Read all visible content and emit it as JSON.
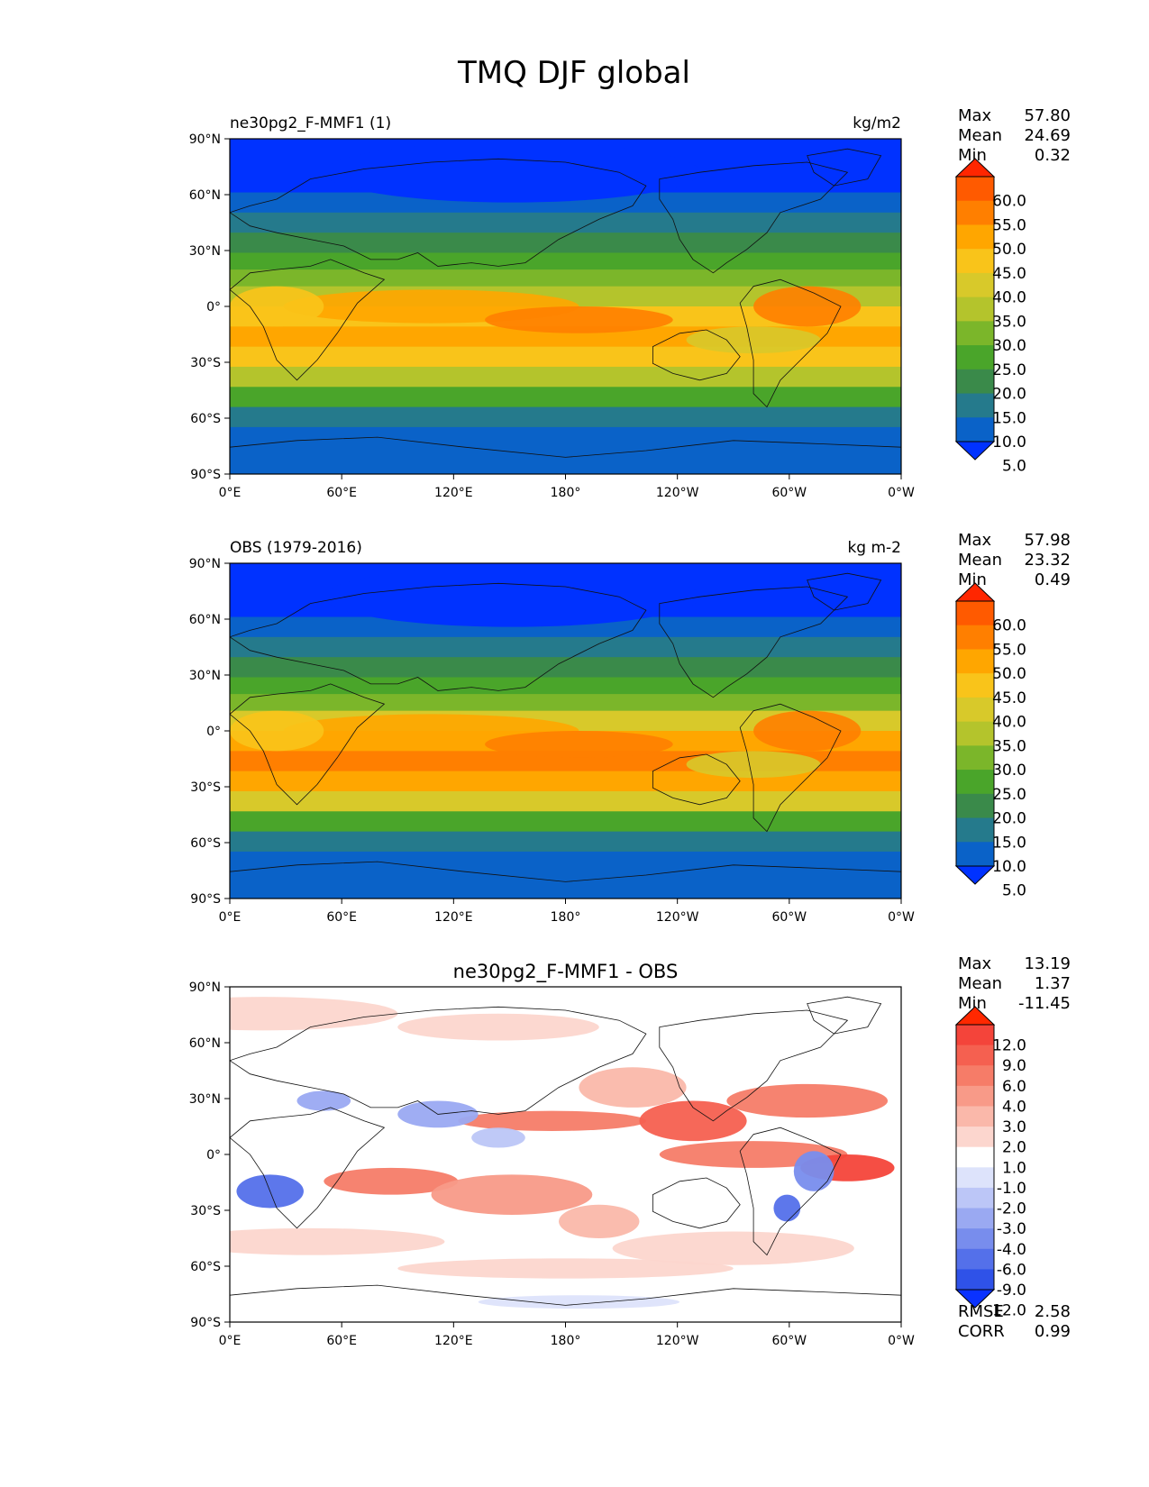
{
  "figure": {
    "title": "TMQ DJF global"
  },
  "axes": {
    "lat_ticks": [
      "90°N",
      "60°N",
      "30°N",
      "0°",
      "30°S",
      "60°S",
      "90°S"
    ],
    "lon_ticks": [
      "0°E",
      "60°E",
      "120°E",
      "180°",
      "120°W",
      "60°W",
      "0°W"
    ]
  },
  "panels": [
    {
      "id": "test",
      "left_title": "ne30pg2_F-MMF1 (1)",
      "center_title": "",
      "units": "kg/m2",
      "stats": [
        {
          "label": "Max",
          "value": "57.80"
        },
        {
          "label": "Mean",
          "value": "24.69"
        },
        {
          "label": "Min",
          "value": "0.32"
        }
      ],
      "colorbar": {
        "labels": [
          "60.0",
          "55.0",
          "50.0",
          "45.0",
          "40.0",
          "35.0",
          "30.0",
          "25.0",
          "20.0",
          "15.0",
          "10.0",
          "5.0"
        ],
        "colors": [
          "#ff2600",
          "#ff5a00",
          "#ff7f00",
          "#ffa600",
          "#f9c41a",
          "#d8c92a",
          "#b4c42c",
          "#7bb62a",
          "#4aa52a",
          "#3a8a4a",
          "#257a8c",
          "#0a62c8",
          "#0032ff"
        ]
      },
      "extra_stats": []
    },
    {
      "id": "ref",
      "left_title": "OBS (1979-2016)",
      "center_title": "",
      "units": "kg m-2",
      "stats": [
        {
          "label": "Max",
          "value": "57.98"
        },
        {
          "label": "Mean",
          "value": "23.32"
        },
        {
          "label": "Min",
          "value": "0.49"
        }
      ],
      "colorbar": {
        "labels": [
          "60.0",
          "55.0",
          "50.0",
          "45.0",
          "40.0",
          "35.0",
          "30.0",
          "25.0",
          "20.0",
          "15.0",
          "10.0",
          "5.0"
        ],
        "colors": [
          "#ff2600",
          "#ff5a00",
          "#ff7f00",
          "#ffa600",
          "#f9c41a",
          "#d8c92a",
          "#b4c42c",
          "#7bb62a",
          "#4aa52a",
          "#3a8a4a",
          "#257a8c",
          "#0a62c8",
          "#0032ff"
        ]
      },
      "extra_stats": []
    },
    {
      "id": "diff",
      "left_title": "",
      "center_title": "ne30pg2_F-MMF1 - OBS",
      "units": "",
      "stats": [
        {
          "label": "Max",
          "value": "13.19"
        },
        {
          "label": "Mean",
          "value": "1.37"
        },
        {
          "label": "Min",
          "value": "-11.45"
        }
      ],
      "colorbar": {
        "labels": [
          "12.0",
          "9.0",
          "6.0",
          "4.0",
          "3.0",
          "2.0",
          "1.0",
          "-1.0",
          "-2.0",
          "-3.0",
          "-4.0",
          "-6.0",
          "-9.0",
          "-12.0"
        ],
        "colors": [
          "#ff2800",
          "#f4443a",
          "#f56050",
          "#f67c68",
          "#f89a88",
          "#fab8aa",
          "#fcd6ce",
          "#ffffff",
          "#dde3fb",
          "#bcc6f7",
          "#9aa9f2",
          "#788ded",
          "#5470ea",
          "#2f52e8",
          "#0a32ff"
        ]
      },
      "extra_stats": [
        {
          "label": "RMSE",
          "value": "2.58"
        },
        {
          "label": "CORR",
          "value": "0.99"
        }
      ]
    }
  ]
}
